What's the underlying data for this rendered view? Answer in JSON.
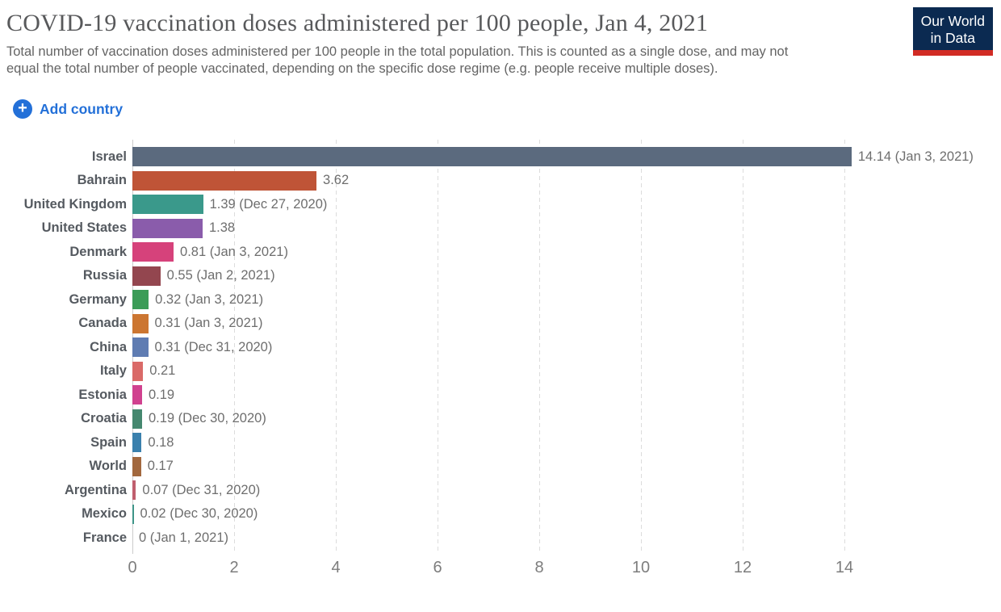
{
  "header": {
    "title": "COVID-19 vaccination doses administered per 100 people, Jan 4, 2021",
    "subtitle": "Total number of vaccination doses administered per 100 people in the total population. This is counted as a single dose, and may not equal the total number of people vaccinated, depending on the specific dose regime (e.g. people receive multiple doses).",
    "logo": {
      "line1": "Our World",
      "line2": "in Data"
    }
  },
  "controls": {
    "add_country_label": "Add country",
    "plus_glyph": "+"
  },
  "theme": {
    "accent_blue": "#2370d8",
    "logo_bg": "#0b2a51",
    "logo_stripe": "#d12b24",
    "title_color": "#58595b",
    "text_gray": "#646464",
    "grid_color": "#dcdcdc",
    "axis_line": "#cccccc"
  },
  "chart_data": {
    "type": "bar",
    "orientation": "horizontal",
    "title": "COVID-19 vaccination doses administered per 100 people, Jan 4, 2021",
    "xlabel": "",
    "ylabel": "",
    "xlim": [
      0,
      14.3
    ],
    "x_ticks": [
      0,
      2,
      4,
      6,
      8,
      10,
      12,
      14
    ],
    "grid": "dashed-vertical",
    "series": [
      {
        "country": "Israel",
        "value": 14.14,
        "label": "14.14 (Jan 3, 2021)",
        "color": "#5b6a7e"
      },
      {
        "country": "Bahrain",
        "value": 3.62,
        "label": "3.62",
        "color": "#bf5437"
      },
      {
        "country": "United Kingdom",
        "value": 1.39,
        "label": "1.39 (Dec 27, 2020)",
        "color": "#3a998b"
      },
      {
        "country": "United States",
        "value": 1.38,
        "label": "1.38",
        "color": "#8a5cab"
      },
      {
        "country": "Denmark",
        "value": 0.81,
        "label": "0.81 (Jan 3, 2021)",
        "color": "#d6427b"
      },
      {
        "country": "Russia",
        "value": 0.55,
        "label": "0.55 (Jan 2, 2021)",
        "color": "#93464f"
      },
      {
        "country": "Germany",
        "value": 0.32,
        "label": "0.32 (Jan 3, 2021)",
        "color": "#3b9c57"
      },
      {
        "country": "Canada",
        "value": 0.31,
        "label": "0.31 (Jan 3, 2021)",
        "color": "#cc7631"
      },
      {
        "country": "China",
        "value": 0.31,
        "label": "0.31 (Dec 31, 2020)",
        "color": "#5f7cb2"
      },
      {
        "country": "Italy",
        "value": 0.21,
        "label": "0.21",
        "color": "#da6a68"
      },
      {
        "country": "Estonia",
        "value": 0.19,
        "label": "0.19",
        "color": "#d0418f"
      },
      {
        "country": "Croatia",
        "value": 0.19,
        "label": "0.19 (Dec 30, 2020)",
        "color": "#45886f"
      },
      {
        "country": "Spain",
        "value": 0.18,
        "label": "0.18",
        "color": "#3a80ad"
      },
      {
        "country": "World",
        "value": 0.17,
        "label": "0.17",
        "color": "#a2683e"
      },
      {
        "country": "Argentina",
        "value": 0.07,
        "label": "0.07 (Dec 31, 2020)",
        "color": "#c05f6e"
      },
      {
        "country": "Mexico",
        "value": 0.02,
        "label": "0.02 (Dec 30, 2020)",
        "color": "#3d9488"
      },
      {
        "country": "France",
        "value": 0,
        "label": "0 (Jan 1, 2021)",
        "color": null
      }
    ]
  }
}
